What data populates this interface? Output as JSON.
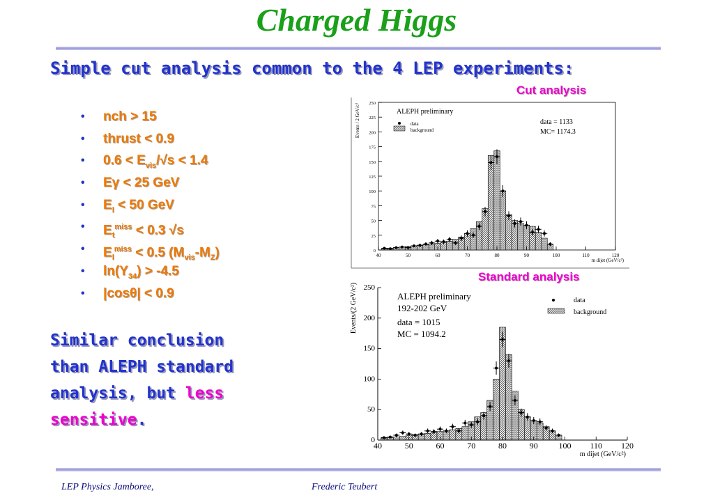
{
  "slide": {
    "title": "Charged Higgs",
    "subtitle": "Simple cut analysis common to the 4 LEP experiments:",
    "cut_analysis_label": "Cut analysis",
    "standard_analysis_label": "Standard analysis",
    "cuts": [
      {
        "html": "nch &gt; 15"
      },
      {
        "html": "thrust &lt; 0.9"
      },
      {
        "html": "0.6 &lt; E<sub>vis</sub>/√s &lt; 1.4"
      },
      {
        "html": "Eγ &lt; 25 GeV"
      },
      {
        "html": "E<sub>l</sub> &lt; 50 GeV"
      },
      {
        "html": "E<sub>t</sub><sup>miss</sup> &lt; 0.3 √s"
      },
      {
        "html": "E<sub>l</sub><sup>miss</sup> &lt; 0.5 (M<sub>vis</sub>-M<sub>Z</sub>)"
      },
      {
        "html": "ln(Y<sub>34</sub>) &gt; -4.5"
      },
      {
        "html": "|cosθ| &lt; 0.9"
      }
    ],
    "conclusion": {
      "line1": "Similar conclusion",
      "line2": "than ALEPH standard",
      "line3_prefix": "analysis, but ",
      "line3_highlight": "less",
      "line4_highlight": "sensitive",
      "line4_suffix": "."
    },
    "footer_left": "LEP Physics Jamboree,",
    "footer_center": "Frederic Teubert"
  },
  "chart_data": [
    {
      "type": "bar",
      "title": "ALEPH preliminary",
      "ylabel": "Events / 2 GeV/c²",
      "xlabel": "m dijet (GeV/c²)",
      "xlim": [
        40,
        120
      ],
      "ylim": [
        0,
        250
      ],
      "xticks": [
        40,
        50,
        60,
        70,
        80,
        90,
        100,
        110,
        120
      ],
      "yticks": [
        0,
        25,
        50,
        75,
        100,
        125,
        150,
        175,
        200,
        225,
        250
      ],
      "bin_width": 2,
      "legend": [
        "data",
        "background"
      ],
      "info": [
        "data = 1133",
        "MC= 1174.3"
      ],
      "background": [
        {
          "x": 42,
          "y": 2
        },
        {
          "x": 44,
          "y": 3
        },
        {
          "x": 46,
          "y": 4
        },
        {
          "x": 48,
          "y": 5
        },
        {
          "x": 50,
          "y": 6
        },
        {
          "x": 52,
          "y": 7
        },
        {
          "x": 54,
          "y": 8
        },
        {
          "x": 56,
          "y": 9
        },
        {
          "x": 58,
          "y": 10
        },
        {
          "x": 60,
          "y": 11
        },
        {
          "x": 62,
          "y": 13
        },
        {
          "x": 64,
          "y": 15
        },
        {
          "x": 66,
          "y": 18
        },
        {
          "x": 68,
          "y": 22
        },
        {
          "x": 70,
          "y": 28
        },
        {
          "x": 72,
          "y": 36
        },
        {
          "x": 74,
          "y": 48
        },
        {
          "x": 76,
          "y": 70
        },
        {
          "x": 78,
          "y": 160
        },
        {
          "x": 80,
          "y": 168
        },
        {
          "x": 82,
          "y": 100
        },
        {
          "x": 84,
          "y": 60
        },
        {
          "x": 86,
          "y": 50
        },
        {
          "x": 88,
          "y": 45
        },
        {
          "x": 90,
          "y": 42
        },
        {
          "x": 92,
          "y": 40
        },
        {
          "x": 94,
          "y": 30
        },
        {
          "x": 96,
          "y": 20
        },
        {
          "x": 98,
          "y": 10
        }
      ],
      "data": [
        {
          "x": 42,
          "y": 3
        },
        {
          "x": 44,
          "y": 2
        },
        {
          "x": 46,
          "y": 4
        },
        {
          "x": 48,
          "y": 5
        },
        {
          "x": 50,
          "y": 4
        },
        {
          "x": 52,
          "y": 7
        },
        {
          "x": 54,
          "y": 8
        },
        {
          "x": 56,
          "y": 10
        },
        {
          "x": 58,
          "y": 12
        },
        {
          "x": 60,
          "y": 15
        },
        {
          "x": 62,
          "y": 14
        },
        {
          "x": 64,
          "y": 18
        },
        {
          "x": 66,
          "y": 12
        },
        {
          "x": 68,
          "y": 20
        },
        {
          "x": 70,
          "y": 28
        },
        {
          "x": 72,
          "y": 25
        },
        {
          "x": 74,
          "y": 40
        },
        {
          "x": 76,
          "y": 65
        },
        {
          "x": 78,
          "y": 148
        },
        {
          "x": 80,
          "y": 158
        },
        {
          "x": 82,
          "y": 100
        },
        {
          "x": 84,
          "y": 58
        },
        {
          "x": 86,
          "y": 45
        },
        {
          "x": 88,
          "y": 48
        },
        {
          "x": 90,
          "y": 42
        },
        {
          "x": 92,
          "y": 30
        },
        {
          "x": 94,
          "y": 35
        },
        {
          "x": 96,
          "y": 28
        },
        {
          "x": 98,
          "y": 10
        }
      ]
    },
    {
      "type": "bar",
      "title": "ALEPH preliminary",
      "subtitle": "192-202 GeV",
      "ylabel": "Events/(2 GeV/c²)",
      "xlabel": "m dijet (GeV/c²)",
      "xlim": [
        40,
        120
      ],
      "ylim": [
        0,
        250
      ],
      "xticks": [
        40,
        50,
        60,
        70,
        80,
        90,
        100,
        110,
        120
      ],
      "yticks": [
        0,
        50,
        100,
        150,
        200,
        250
      ],
      "bin_width": 2,
      "legend": [
        "data",
        "background"
      ],
      "info": [
        "data = 1015",
        "MC = 1094.2"
      ],
      "background": [
        {
          "x": 42,
          "y": 3
        },
        {
          "x": 44,
          "y": 4
        },
        {
          "x": 46,
          "y": 5
        },
        {
          "x": 48,
          "y": 6
        },
        {
          "x": 50,
          "y": 8
        },
        {
          "x": 52,
          "y": 9
        },
        {
          "x": 54,
          "y": 10
        },
        {
          "x": 56,
          "y": 11
        },
        {
          "x": 58,
          "y": 12
        },
        {
          "x": 60,
          "y": 14
        },
        {
          "x": 62,
          "y": 15
        },
        {
          "x": 64,
          "y": 17
        },
        {
          "x": 66,
          "y": 19
        },
        {
          "x": 68,
          "y": 22
        },
        {
          "x": 70,
          "y": 30
        },
        {
          "x": 72,
          "y": 38
        },
        {
          "x": 74,
          "y": 45
        },
        {
          "x": 76,
          "y": 65
        },
        {
          "x": 78,
          "y": 100
        },
        {
          "x": 80,
          "y": 185
        },
        {
          "x": 82,
          "y": 140
        },
        {
          "x": 84,
          "y": 80
        },
        {
          "x": 86,
          "y": 50
        },
        {
          "x": 88,
          "y": 38
        },
        {
          "x": 90,
          "y": 32
        },
        {
          "x": 92,
          "y": 28
        },
        {
          "x": 94,
          "y": 22
        },
        {
          "x": 96,
          "y": 15
        },
        {
          "x": 98,
          "y": 8
        }
      ],
      "data": [
        {
          "x": 42,
          "y": 4
        },
        {
          "x": 44,
          "y": 5
        },
        {
          "x": 46,
          "y": 8
        },
        {
          "x": 48,
          "y": 12
        },
        {
          "x": 50,
          "y": 10
        },
        {
          "x": 52,
          "y": 8
        },
        {
          "x": 54,
          "y": 10
        },
        {
          "x": 56,
          "y": 15
        },
        {
          "x": 58,
          "y": 14
        },
        {
          "x": 60,
          "y": 18
        },
        {
          "x": 62,
          "y": 15
        },
        {
          "x": 64,
          "y": 22
        },
        {
          "x": 66,
          "y": 15
        },
        {
          "x": 68,
          "y": 28
        },
        {
          "x": 70,
          "y": 25
        },
        {
          "x": 72,
          "y": 30
        },
        {
          "x": 74,
          "y": 40
        },
        {
          "x": 76,
          "y": 55
        },
        {
          "x": 78,
          "y": 118
        },
        {
          "x": 80,
          "y": 165
        },
        {
          "x": 82,
          "y": 130
        },
        {
          "x": 84,
          "y": 65
        },
        {
          "x": 86,
          "y": 45
        },
        {
          "x": 88,
          "y": 38
        },
        {
          "x": 90,
          "y": 32
        },
        {
          "x": 92,
          "y": 30
        },
        {
          "x": 94,
          "y": 20
        },
        {
          "x": 96,
          "y": 15
        },
        {
          "x": 98,
          "y": 8
        }
      ]
    }
  ]
}
